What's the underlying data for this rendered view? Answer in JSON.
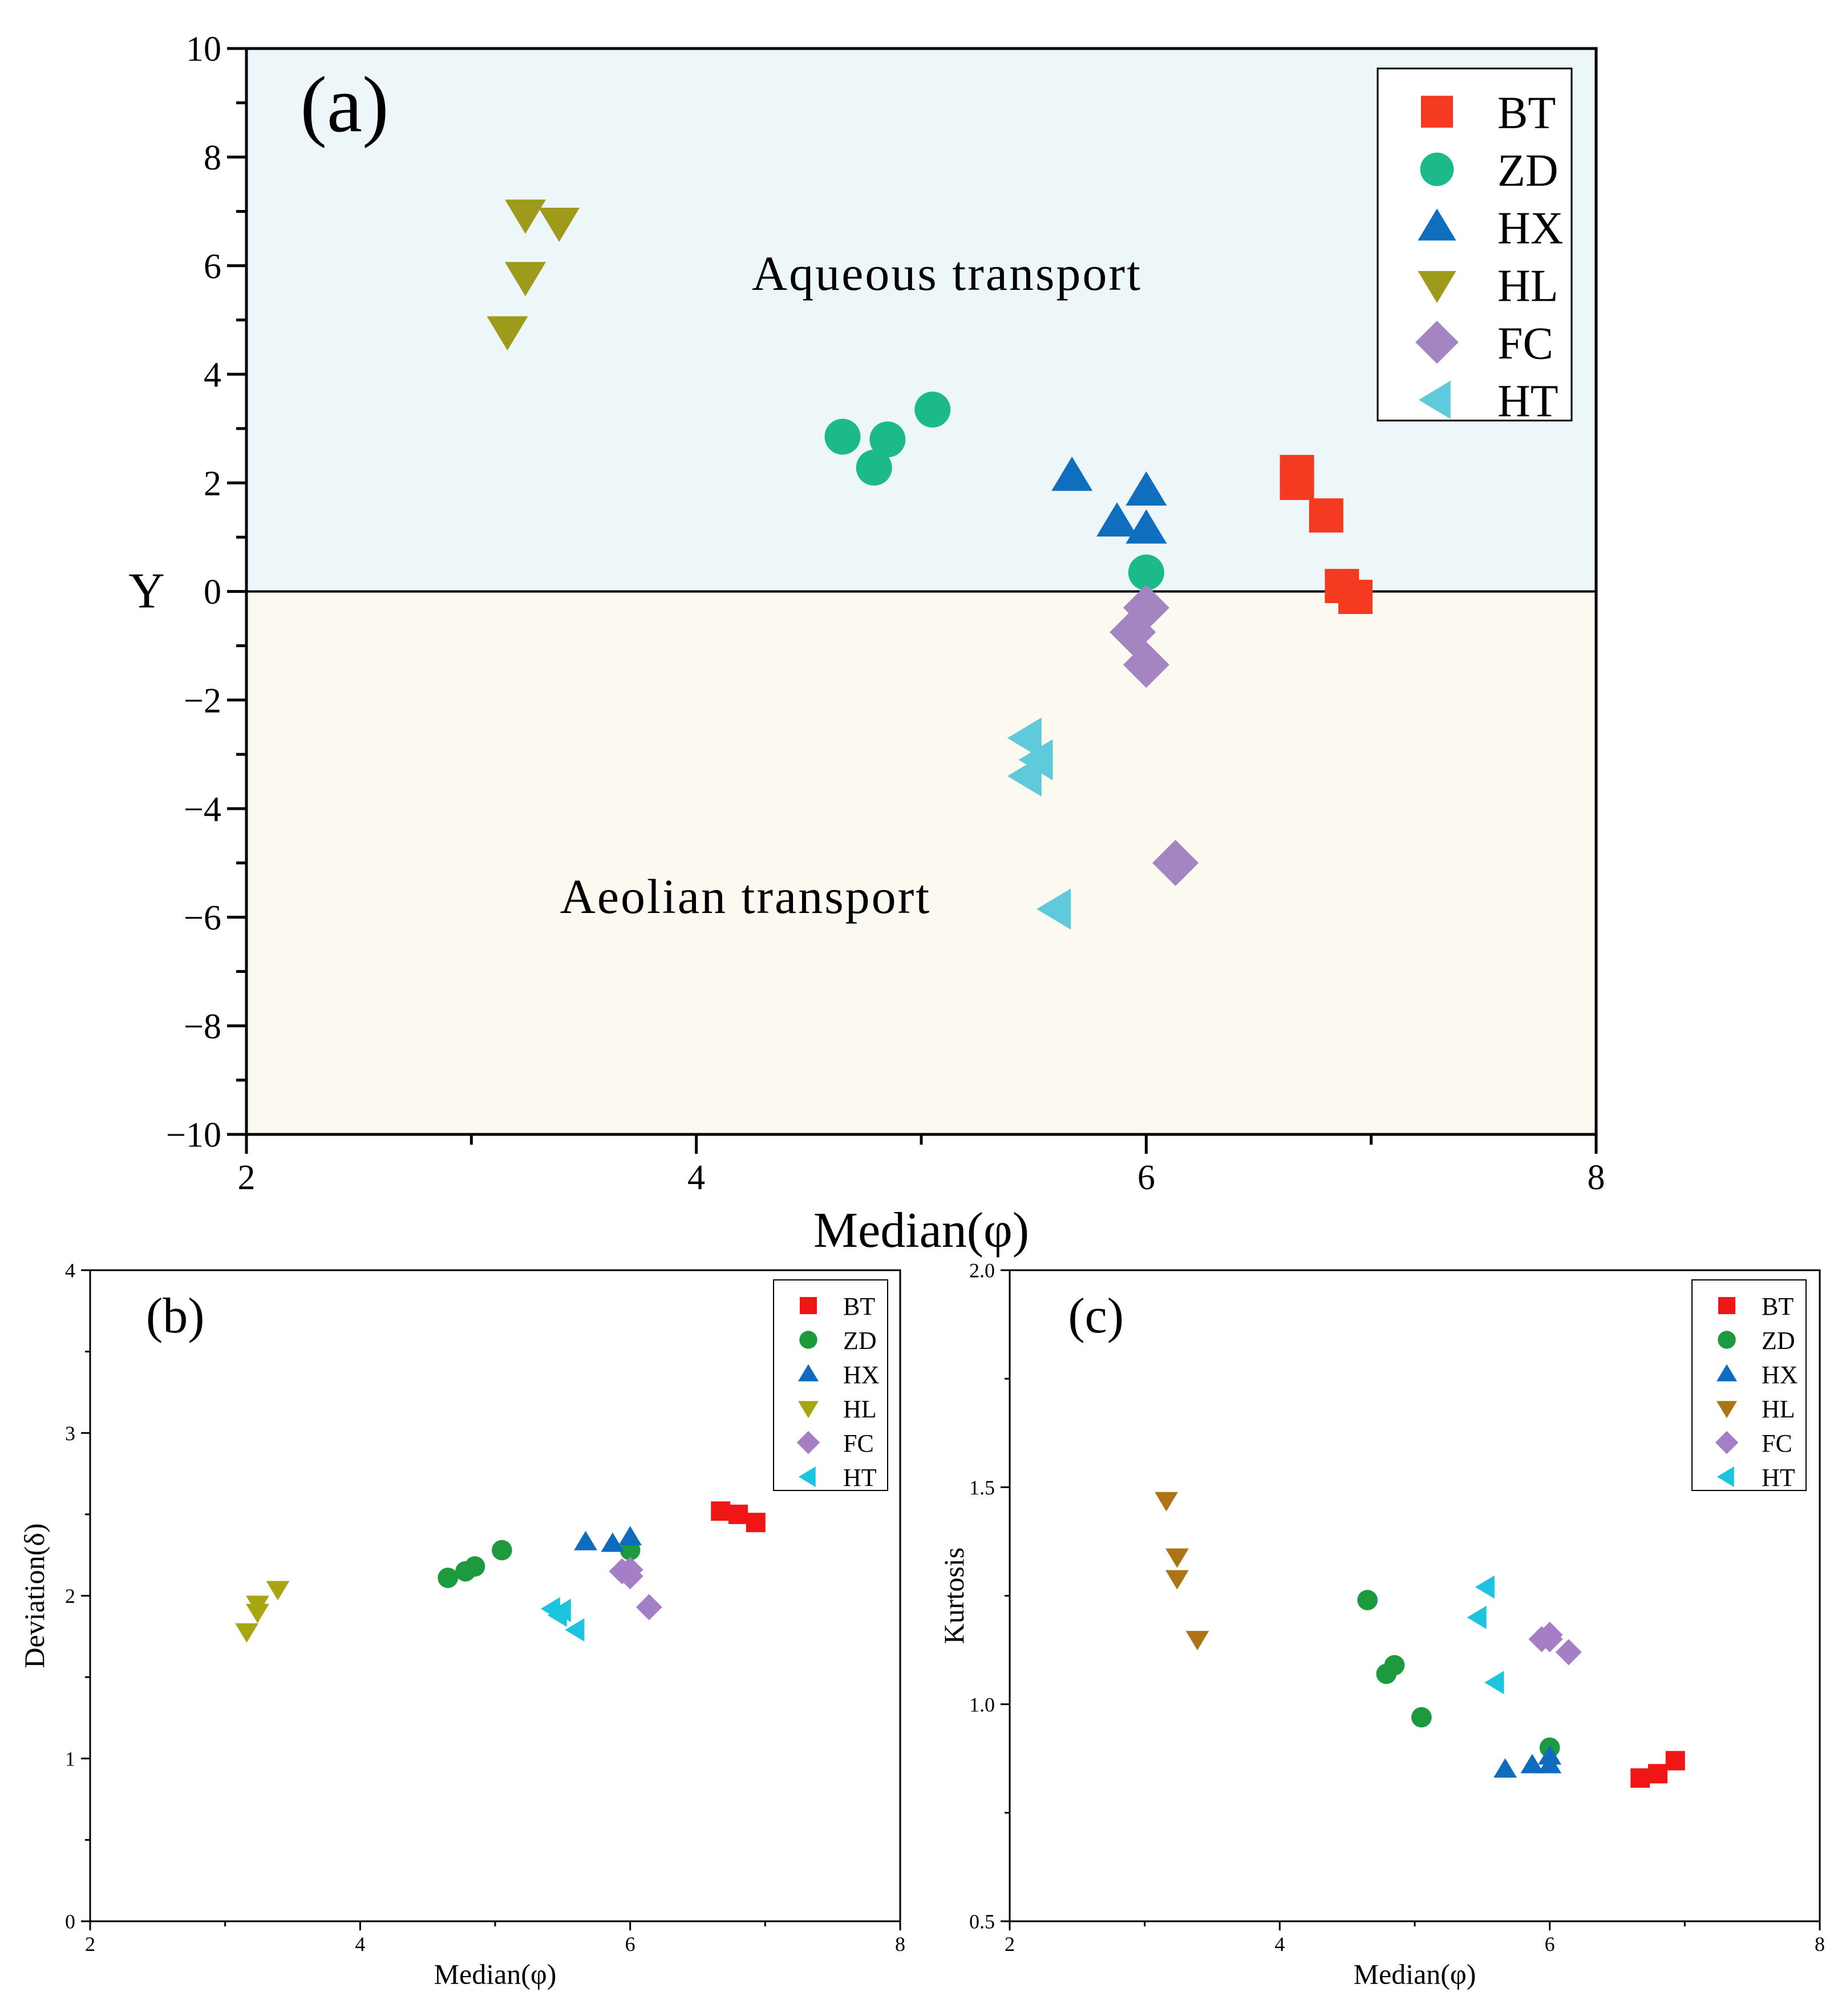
{
  "series_styles": [
    {
      "name": "BT",
      "color_a": "#f43b22",
      "color_bc": "#f01616",
      "marker": "square"
    },
    {
      "name": "ZD",
      "color_a": "#1cb98a",
      "color_bc": "#1d9a3e",
      "marker": "circle"
    },
    {
      "name": "HX",
      "color_a": "#0f6fbe",
      "color_bc": "#0f6bbd",
      "marker": "triangle-up"
    },
    {
      "name": "HL",
      "color_a": "#9e9b1c",
      "color_bc_b": "#a7a512",
      "color_bc_c": "#ac7416",
      "marker": "triangle-down"
    },
    {
      "name": "FC",
      "color_a": "#a485c2",
      "color_bc": "#a47fc6",
      "marker": "diamond"
    },
    {
      "name": "HT",
      "color_a": "#5ecadb",
      "color_bc": "#1cc4df",
      "marker": "triangle-left"
    }
  ],
  "background": {
    "upper": "#edf6f8",
    "lower": "#fcf9f1"
  },
  "chart_data": [
    {
      "type": "scatter",
      "panel_label": "(a)",
      "xlabel": "Median(φ)",
      "ylabel": "Y",
      "xlim": [
        2,
        8
      ],
      "ylim": [
        -10,
        10
      ],
      "xticks": [
        2,
        4,
        6,
        8
      ],
      "yticks": [
        10,
        8,
        6,
        4,
        2,
        0,
        -2,
        -4,
        -6,
        -8,
        -10
      ],
      "ytick_labels": [
        "10",
        "8",
        "6",
        "4",
        "2",
        "0",
        "−2",
        "−4",
        "−6",
        "−8",
        "−10"
      ],
      "annotations": [
        "Aqueous transport",
        "Aeolian transport"
      ],
      "threshold_y": 0,
      "legend": [
        "BT",
        "ZD",
        "HX",
        "HL",
        "FC",
        "HT"
      ],
      "series": [
        {
          "name": "BT",
          "x": [
            6.67,
            6.67,
            6.8,
            6.87,
            6.93
          ],
          "y": [
            2.2,
            2.0,
            1.4,
            0.1,
            -0.1
          ]
        },
        {
          "name": "ZD",
          "x": [
            4.65,
            4.85,
            4.79,
            5.05,
            6.0
          ],
          "y": [
            2.85,
            2.8,
            2.28,
            3.35,
            0.35
          ]
        },
        {
          "name": "HX",
          "x": [
            5.67,
            5.87,
            6.0,
            6.0
          ],
          "y": [
            2.12,
            1.28,
            1.15,
            1.85
          ]
        },
        {
          "name": "HL",
          "x": [
            3.24,
            3.39,
            3.24,
            3.16
          ],
          "y": [
            6.95,
            6.8,
            5.8,
            4.8
          ]
        },
        {
          "name": "FC",
          "x": [
            6.0,
            5.94,
            6.0,
            6.13
          ],
          "y": [
            -0.3,
            -0.75,
            -1.35,
            -5.0
          ]
        },
        {
          "name": "HT",
          "x": [
            5.47,
            5.52,
            5.47,
            5.6
          ],
          "y": [
            -2.7,
            -3.1,
            -3.4,
            -5.85
          ]
        }
      ]
    },
    {
      "type": "scatter",
      "panel_label": "(b)",
      "xlabel": "Median(φ)",
      "ylabel": "Deviation(δ)",
      "xlim": [
        2,
        8
      ],
      "ylim": [
        0,
        4
      ],
      "xticks": [
        2,
        4,
        6,
        8
      ],
      "yticks": [
        0,
        1,
        2,
        3,
        4
      ],
      "ytick_labels": [
        "0",
        "1",
        "2",
        "3",
        "4"
      ],
      "legend": [
        "BT",
        "ZD",
        "HX",
        "HL",
        "FC",
        "HT"
      ],
      "series": [
        {
          "name": "BT",
          "x": [
            6.67,
            6.8,
            6.93
          ],
          "y": [
            2.52,
            2.5,
            2.45
          ]
        },
        {
          "name": "ZD",
          "x": [
            4.65,
            4.78,
            4.85,
            5.05,
            6.0
          ],
          "y": [
            2.11,
            2.15,
            2.18,
            2.28,
            2.28
          ]
        },
        {
          "name": "HX",
          "x": [
            5.67,
            5.87,
            6.0
          ],
          "y": [
            2.33,
            2.32,
            2.36
          ]
        },
        {
          "name": "HL",
          "x": [
            3.16,
            3.24,
            3.24,
            3.39
          ],
          "y": [
            1.78,
            1.95,
            1.9,
            2.04
          ]
        },
        {
          "name": "FC",
          "x": [
            5.94,
            6.0,
            6.0,
            6.14
          ],
          "y": [
            2.15,
            2.16,
            2.12,
            1.93
          ]
        },
        {
          "name": "HT",
          "x": [
            5.42,
            5.5,
            5.47,
            5.6
          ],
          "y": [
            1.92,
            1.91,
            1.88,
            1.79
          ]
        }
      ]
    },
    {
      "type": "scatter",
      "panel_label": "(c)",
      "xlabel": "Median(φ)",
      "ylabel": "Kurtosis",
      "xlim": [
        2,
        8
      ],
      "ylim": [
        0.5,
        2.0
      ],
      "xticks": [
        2,
        4,
        6,
        8
      ],
      "yticks": [
        0.5,
        1.0,
        1.5,
        2.0
      ],
      "ytick_labels": [
        "0.5",
        "1.0",
        "1.5",
        "2.0"
      ],
      "legend": [
        "BT",
        "ZD",
        "HX",
        "HL",
        "FC",
        "HT"
      ],
      "series": [
        {
          "name": "BT",
          "x": [
            6.67,
            6.8,
            6.93
          ],
          "y": [
            0.83,
            0.84,
            0.87
          ]
        },
        {
          "name": "ZD",
          "x": [
            4.65,
            4.79,
            4.85,
            5.05,
            6.0
          ],
          "y": [
            1.24,
            1.07,
            1.09,
            0.97,
            0.9
          ]
        },
        {
          "name": "HX",
          "x": [
            5.67,
            5.87,
            6.0,
            6.0
          ],
          "y": [
            0.85,
            0.86,
            0.86,
            0.88
          ]
        },
        {
          "name": "HL",
          "x": [
            3.16,
            3.24,
            3.24,
            3.39
          ],
          "y": [
            1.47,
            1.34,
            1.29,
            1.15
          ]
        },
        {
          "name": "FC",
          "x": [
            5.94,
            6.0,
            6.0,
            6.14
          ],
          "y": [
            1.15,
            1.16,
            1.15,
            1.12
          ]
        },
        {
          "name": "HT",
          "x": [
            5.47,
            5.53,
            5.6,
            5.6
          ],
          "y": [
            1.2,
            1.27,
            1.05,
            1.05
          ]
        }
      ]
    }
  ]
}
